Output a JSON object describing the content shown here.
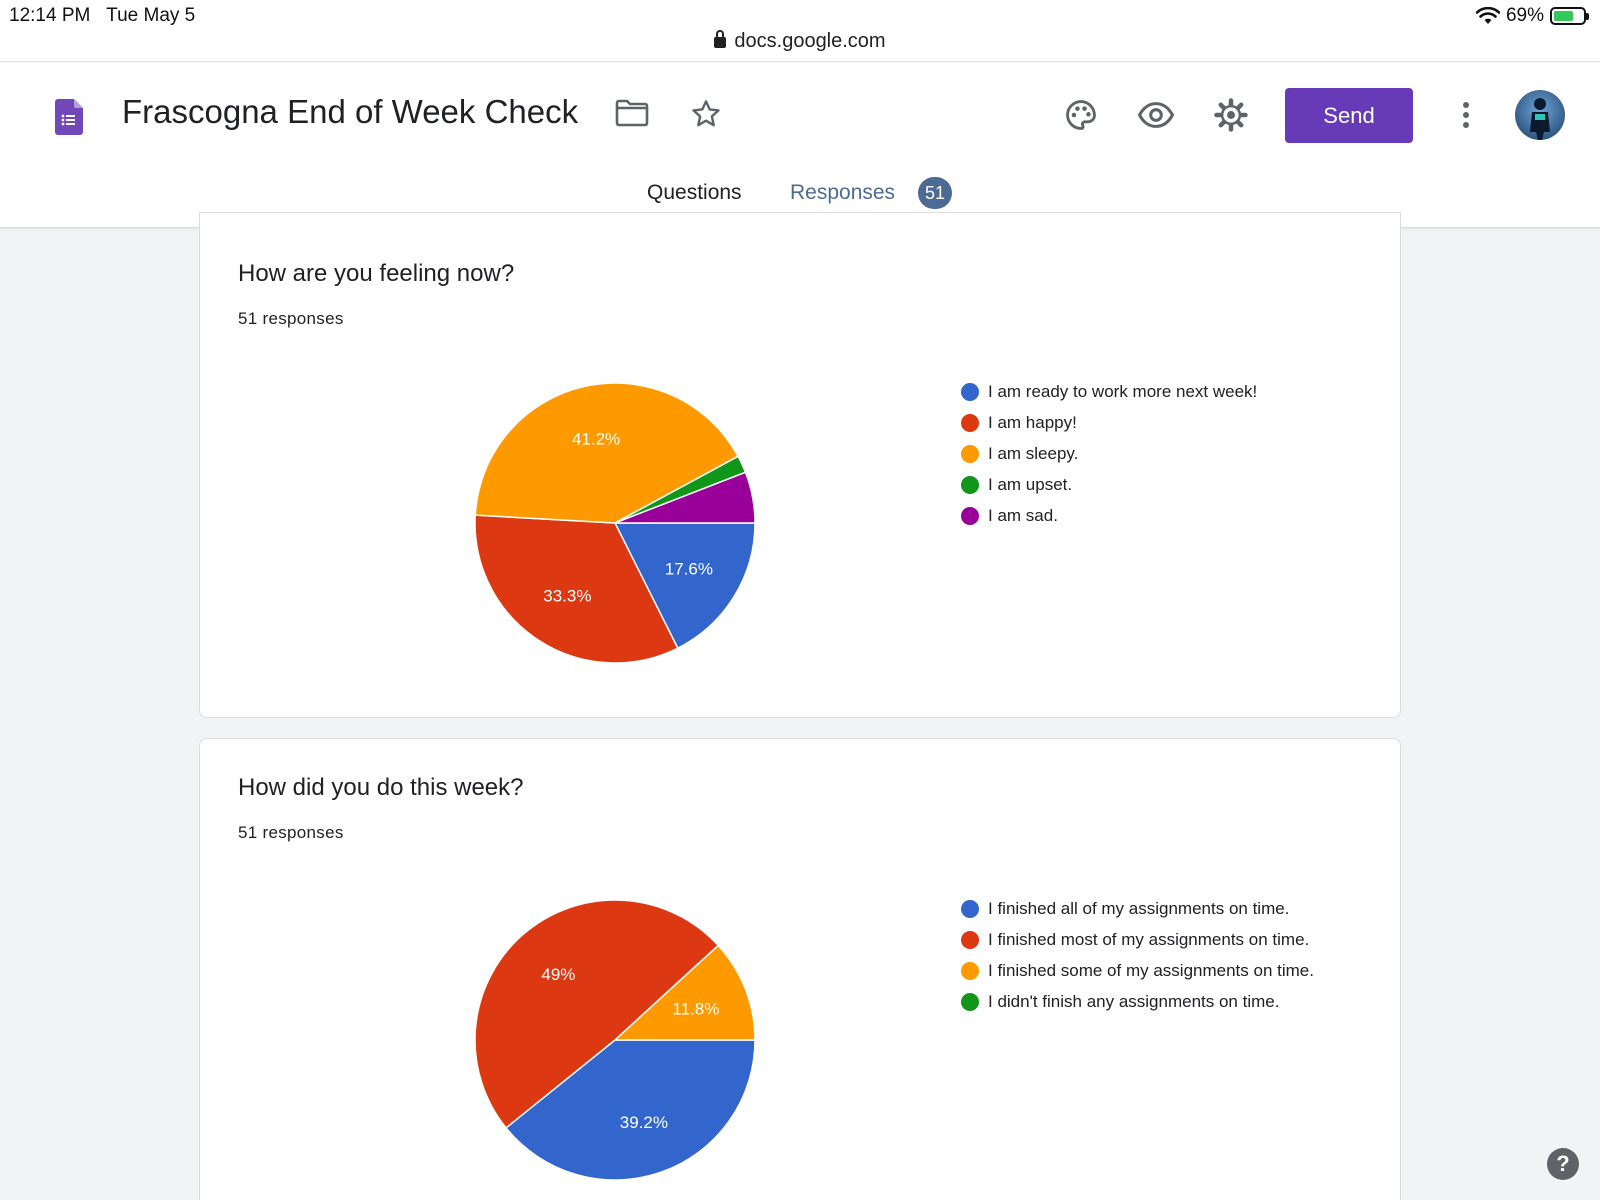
{
  "status_bar": {
    "time": "12:14 PM",
    "date": "Tue May 5",
    "battery": "69%",
    "battery_level": 0.69,
    "url": "docs.google.com"
  },
  "header": {
    "title": "Frascogna End of Week Check",
    "send_label": "Send",
    "icons": [
      "forms-logo-icon",
      "folder-icon",
      "star-icon",
      "palette-icon",
      "eye-icon",
      "gear-icon",
      "more-vert-icon"
    ]
  },
  "tabs": {
    "questions": "Questions",
    "responses": "Responses",
    "responses_count": "51"
  },
  "colors": {
    "blue": "#3366cc",
    "red": "#dc3912",
    "orange": "#ff9900",
    "green": "#109618",
    "purple": "#990099",
    "accent": "#673ab7",
    "tab_accent": "#4d6a94"
  },
  "questions": [
    {
      "title": "How are you feeling now?",
      "count": "51 responses"
    },
    {
      "title": "How did you do this week?",
      "count": "51 responses"
    }
  ],
  "chart_data": [
    {
      "type": "pie",
      "title": "How are you feeling now?",
      "categories": [
        "I am ready to work more next week!",
        "I am happy!",
        "I am sleepy.",
        "I am upset.",
        "I am sad."
      ],
      "values": [
        17.6,
        33.3,
        41.2,
        2.0,
        5.9
      ],
      "labels": [
        "17.6%",
        "33.3%",
        "41.2%",
        "",
        ""
      ],
      "colors": [
        "#3366cc",
        "#dc3912",
        "#ff9900",
        "#109618",
        "#990099"
      ],
      "legend": "right"
    },
    {
      "type": "pie",
      "title": "How did you do this week?",
      "categories": [
        "I finished all of my assignments on time.",
        "I finished most of my assignments on time.",
        "I finished some of my assignments on time.",
        "I didn't finish any assignments on time."
      ],
      "values": [
        39.2,
        49.0,
        11.8,
        0
      ],
      "labels": [
        "39.2%",
        "49%",
        "11.8%",
        ""
      ],
      "colors": [
        "#3366cc",
        "#dc3912",
        "#ff9900",
        "#109618"
      ],
      "legend": "right"
    }
  ]
}
